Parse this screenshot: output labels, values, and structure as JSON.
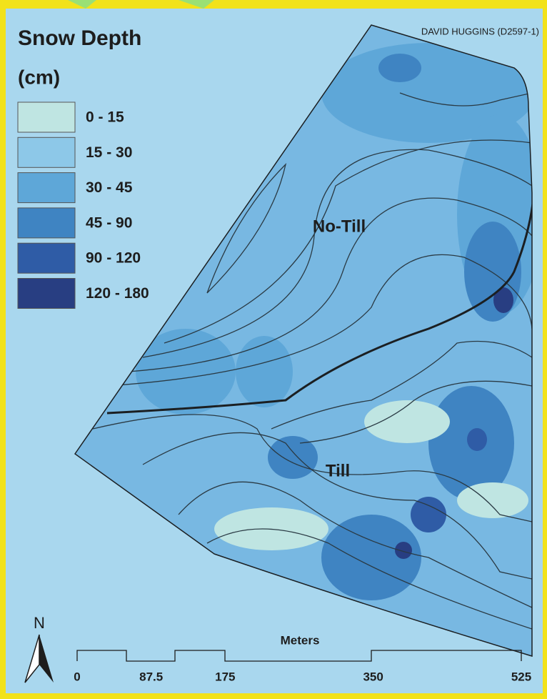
{
  "title": "Snow Depth",
  "unit": "(cm)",
  "credit": "DAVID HUGGINS (D2597-1)",
  "legend": [
    {
      "label": "0 - 15",
      "color": "#bfe5e2"
    },
    {
      "label": "15 - 30",
      "color": "#8dc8e8"
    },
    {
      "label": "30 - 45",
      "color": "#5ea7d8"
    },
    {
      "label": "45 - 90",
      "color": "#3f84c2"
    },
    {
      "label": "90 - 120",
      "color": "#2f5ca6"
    },
    {
      "label": "120 - 180",
      "color": "#283e82"
    }
  ],
  "regions": [
    "No-Till",
    "Till"
  ],
  "north": "N",
  "scale": {
    "unit": "Meters",
    "ticks": [
      0,
      87.5,
      175,
      350,
      525
    ]
  }
}
